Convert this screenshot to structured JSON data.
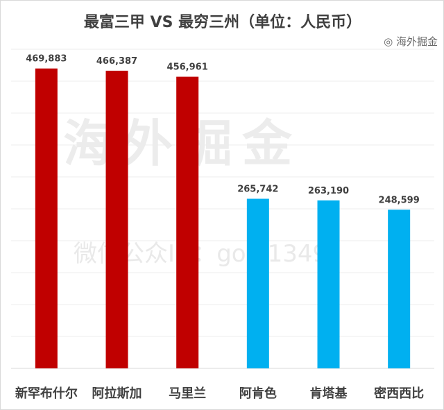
{
  "chart_data": {
    "type": "bar",
    "title": "最富三甲 VS 最穷三州（单位：人民币）",
    "categories": [
      "新罕布什尔",
      "阿拉斯加",
      "马里兰",
      "阿肯色",
      "肯塔基",
      "密西西比"
    ],
    "values": [
      469883,
      466387,
      456961,
      265742,
      263190,
      248599
    ],
    "data_labels": [
      "469,883",
      "466,387",
      "456,961",
      "265,742",
      "263,190",
      "248,599"
    ],
    "bar_colors": [
      "#c00000",
      "#c00000",
      "#c00000",
      "#00b0f0",
      "#00b0f0",
      "#00b0f0"
    ],
    "ylim": [
      0,
      500000
    ],
    "grid": true,
    "y_tick_labels_shown": false,
    "xlabel": "",
    "ylabel": ""
  },
  "watermark": {
    "main": "海外掘金",
    "sub": "微信公众ID：gold1349",
    "corner": "海外掘金"
  }
}
